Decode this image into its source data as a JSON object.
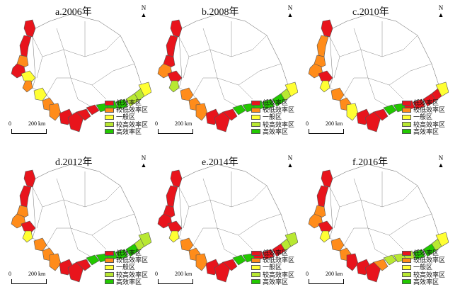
{
  "colors": {
    "low": "#e8141c",
    "mid_low": "#ff8c1a",
    "mid": "#ffff33",
    "mid_high": "#b8e832",
    "high": "#22c800",
    "border": "#555555"
  },
  "legend_labels": [
    "低效率区",
    "较低效率区",
    "一般区",
    "较高效率区",
    "高效率区"
  ],
  "north_label": "N",
  "scale": {
    "zero": "0",
    "distance": "200 km"
  },
  "panels": [
    {
      "title": "a.2006年",
      "levels": [
        "low",
        "low",
        "mid_low",
        "low",
        "mid",
        "mid_low",
        "mid",
        "mid_low",
        "mid_low",
        "low",
        "low",
        "low",
        "low",
        "high",
        "high",
        "high",
        "mid_high",
        "mid_high",
        "mid"
      ]
    },
    {
      "title": "b.2008年",
      "levels": [
        "low",
        "low",
        "low",
        "mid_low",
        "low",
        "mid_high",
        "mid_low",
        "mid_low",
        "mid_low",
        "low",
        "low",
        "low",
        "high",
        "high",
        "high",
        "high",
        "high",
        "mid_high",
        "mid"
      ]
    },
    {
      "title": "c.2010年",
      "levels": [
        "low",
        "mid_low",
        "mid_low",
        "mid_low",
        "low",
        "mid",
        "mid_low",
        "mid_low",
        "mid",
        "low",
        "low",
        "low",
        "high",
        "high",
        "low",
        "low",
        "low",
        "low",
        "mid"
      ]
    },
    {
      "title": "d.2012年",
      "levels": [
        "low",
        "low",
        "mid_low",
        "mid_low",
        "low",
        "mid",
        "mid_low",
        "mid_low",
        "mid_low",
        "low",
        "low",
        "low",
        "high",
        "high",
        "high",
        "high",
        "high",
        "mid_high",
        "mid_high"
      ]
    },
    {
      "title": "e.2014年",
      "levels": [
        "low",
        "low",
        "low",
        "low",
        "low",
        "mid",
        "mid_low",
        "mid_low",
        "mid_low",
        "low",
        "low",
        "low",
        "high",
        "high",
        "low",
        "low",
        "low",
        "mid_high",
        "mid_high"
      ]
    },
    {
      "title": "f.2016年",
      "levels": [
        "low",
        "low",
        "mid_low",
        "mid_low",
        "low",
        "mid",
        "mid_low",
        "mid_low",
        "low",
        "low",
        "low",
        "mid_low",
        "mid_high",
        "mid_high",
        "mid_high",
        "high",
        "high",
        "mid_high",
        "mid"
      ]
    }
  ]
}
